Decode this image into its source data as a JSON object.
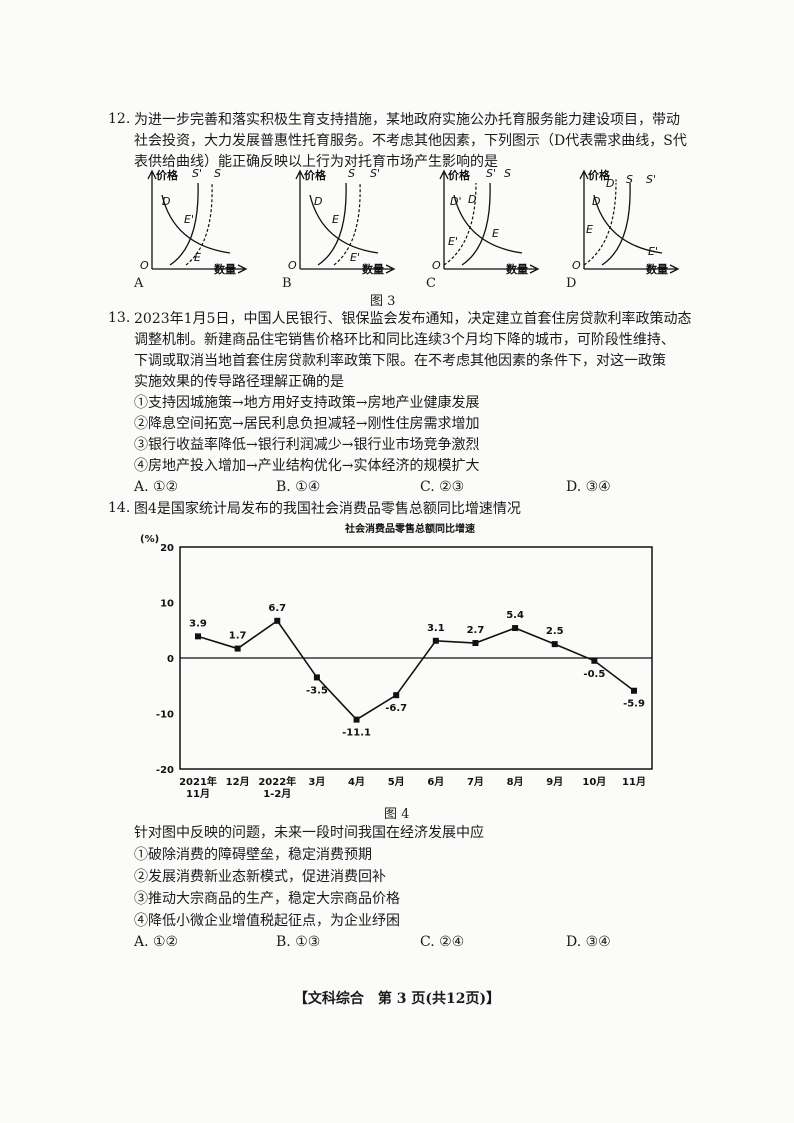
{
  "q12": {
    "number": "12.",
    "lines": [
      "为进一步完善和落实积极生育支持措施，某地政府实施公办托育服务能力建设项目，带动",
      "社会投资，大力发展普惠性托育服务。不考虑其他因素，下列图示（D代表需求曲线，S代",
      "表供给曲线）能正确反映以上行为对托育市场产生影响的是"
    ],
    "graphs": [
      {
        "option": "A",
        "y_label": "价格",
        "x_label": "数量",
        "origin": "O",
        "labels": [
          "D",
          "S'",
          "S",
          "E'",
          "E"
        ]
      },
      {
        "option": "B",
        "y_label": "价格",
        "x_label": "数量",
        "origin": "O",
        "labels": [
          "D",
          "S",
          "S'",
          "E",
          "E'"
        ]
      },
      {
        "option": "C",
        "y_label": "价格",
        "x_label": "数量",
        "origin": "O",
        "labels": [
          "D'",
          "D",
          "S'",
          "S",
          "E",
          "E'"
        ]
      },
      {
        "option": "D",
        "y_label": "价格",
        "x_label": "数量",
        "origin": "O",
        "labels": [
          "D",
          "D'",
          "S",
          "S'",
          "E",
          "E'"
        ]
      }
    ],
    "figure_caption": "图 3"
  },
  "q13": {
    "number": "13.",
    "lines": [
      "2023年1月5日，中国人民银行、银保监会发布通知，决定建立首套住房贷款利率政策动态",
      "调整机制。新建商品住宅销售价格环比和同比连续3个月均下降的城市，可阶段性维持、",
      "下调或取消当地首套住房贷款利率政策下限。在不考虑其他因素的条件下，对这一政策",
      "实施效果的传导路径理解正确的是"
    ],
    "items": [
      "①支持因城施策→地方用好支持政策→房地产业健康发展",
      "②降息空间拓宽→居民利息负担减轻→刚性住房需求增加",
      "③银行收益率降低→银行利润减少→银行业市场竞争激烈",
      "④房地产投入增加→产业结构优化→实体经济的规模扩大"
    ],
    "options": [
      "A. ①②",
      "B. ①④",
      "C. ②③",
      "D. ③④"
    ]
  },
  "q14": {
    "number": "14.",
    "intro": "图4是国家统计局发布的我国社会消费品零售总额同比增速情况",
    "figure_caption": "图 4",
    "question": "针对图中反映的问题，未来一段时间我国在经济发展中应",
    "items": [
      "①破除消费的障碍壁垒，稳定消费预期",
      "②发展消费新业态新模式，促进消费回补",
      "③推动大宗商品的生产，稳定大宗商品价格",
      "④降低小微企业增值税起征点，为企业纾困"
    ],
    "options": [
      "A. ①②",
      "B. ①③",
      "C. ②④",
      "D. ③④"
    ]
  },
  "chart_data": {
    "type": "line",
    "title": "社会消费品零售总额同比增速",
    "ylabel": "(%)",
    "ylim": [
      -20,
      20
    ],
    "yticks": [
      "20",
      "10",
      "0",
      "-10",
      "-20"
    ],
    "categories": [
      "2021年\n11月",
      "12月",
      "2022年\n1-2月",
      "3月",
      "4月",
      "5月",
      "6月",
      "7月",
      "8月",
      "9月",
      "10月",
      "11月"
    ],
    "values": [
      3.9,
      1.7,
      6.7,
      -3.5,
      -11.1,
      -6.7,
      3.1,
      2.7,
      5.4,
      2.5,
      -0.5,
      -5.9
    ],
    "data_labels": [
      "3.9",
      "1.7",
      "6.7",
      "-3.5",
      "-11.1",
      "-6.7",
      "3.1",
      "2.7",
      "5.4",
      "2.5",
      "-0.5",
      "-5.9"
    ],
    "grid": false
  },
  "footer": "【文科综合　第 3 页(共12页)】"
}
